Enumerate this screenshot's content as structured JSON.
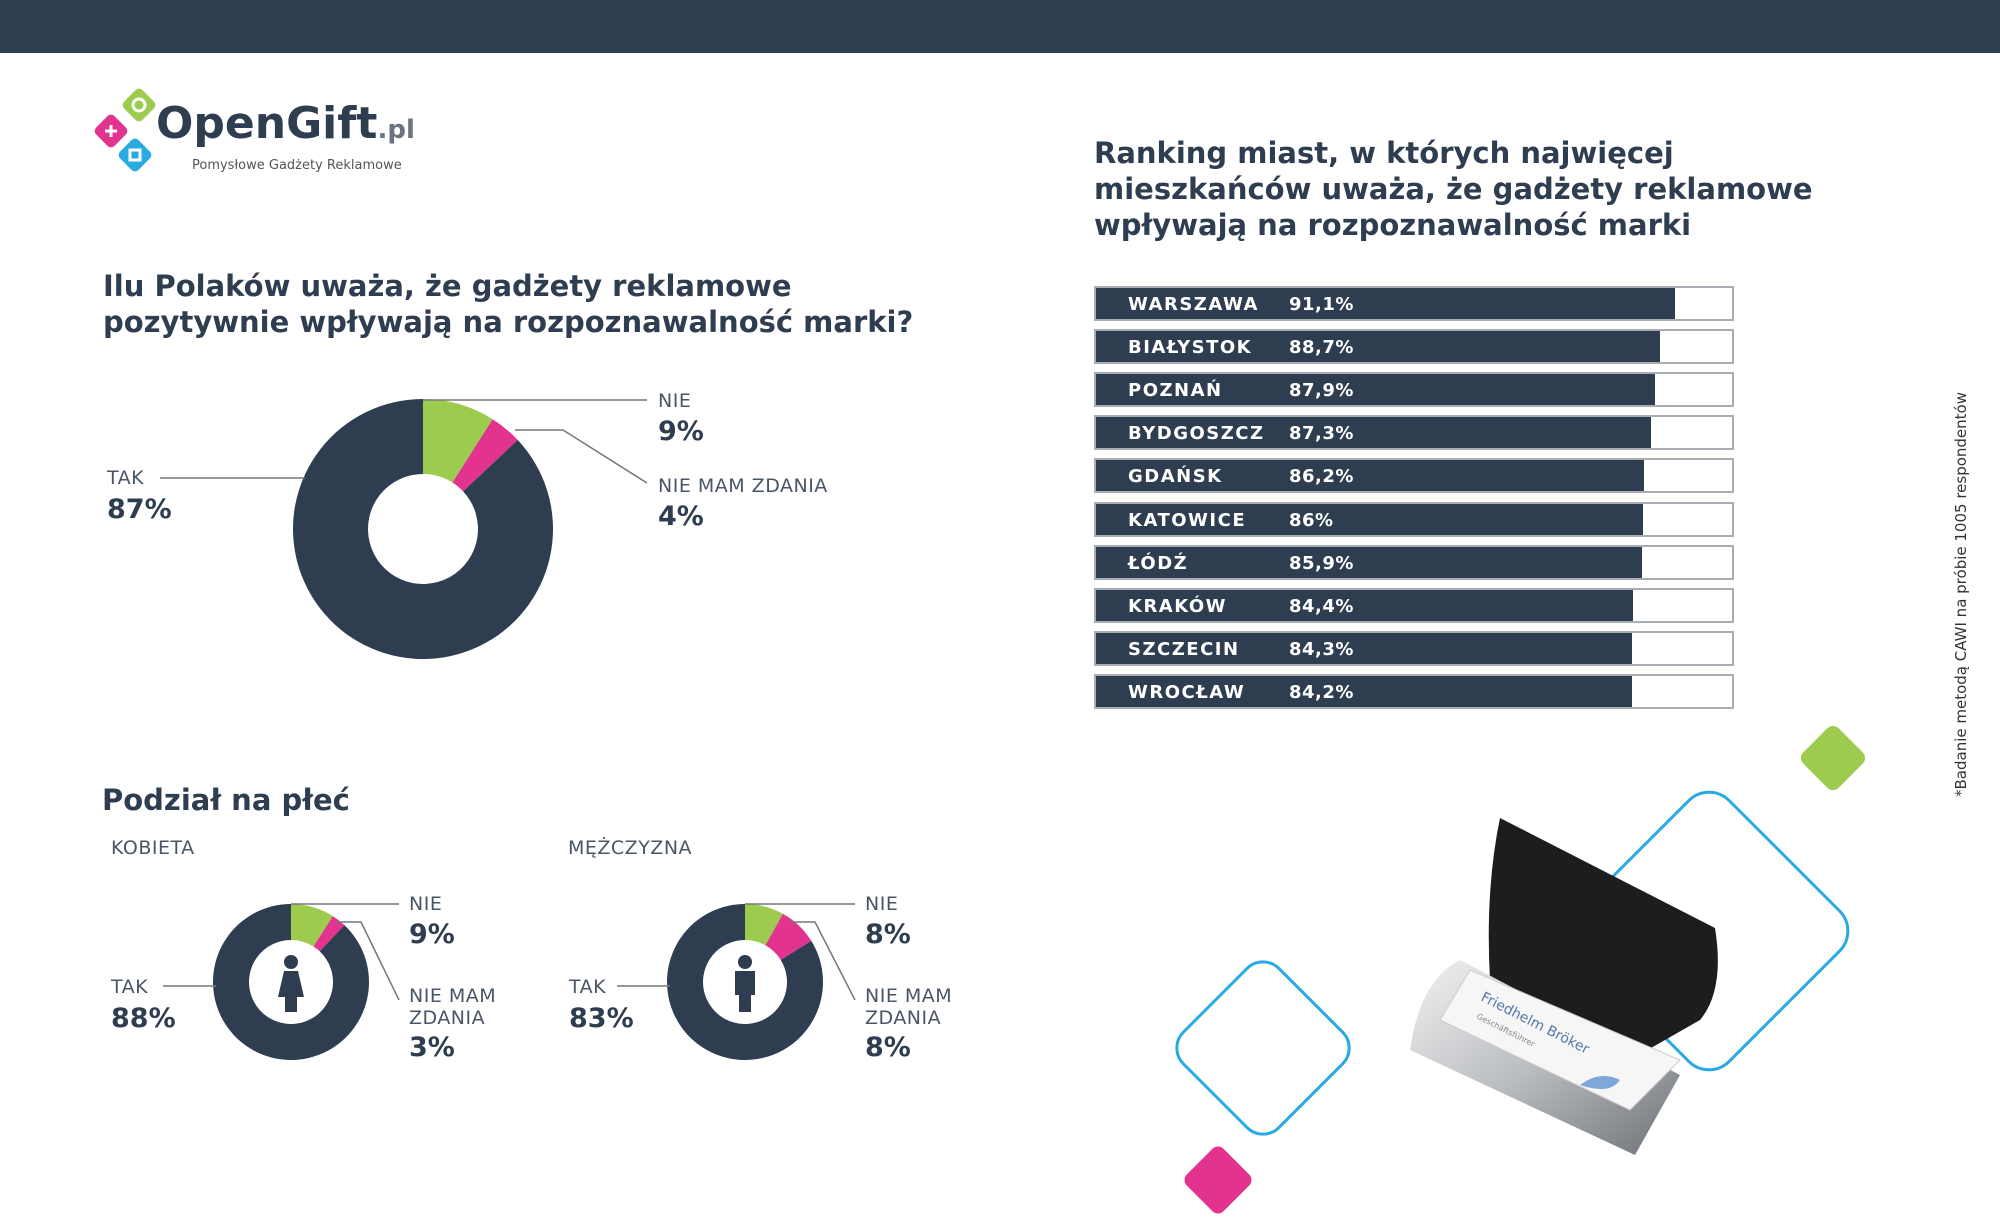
{
  "logo": {
    "name": "OpenGift",
    "suffix": ".pl",
    "tagline": "Pomysłowe Gadżety Reklamowe"
  },
  "colors": {
    "dark": "#2e3d50",
    "green": "#9ccb4f",
    "pink": "#e2338f",
    "blue": "#29abe2"
  },
  "main": {
    "title_line1": "Ilu Polaków uważa, że gadżety reklamowe",
    "title_line2": "pozytywnie wpływają na rozpoznawalność marki?",
    "labels": {
      "tak": "TAK",
      "nie": "NIE",
      "nmz": "NIE MAM ZDANIA"
    },
    "values": {
      "tak": "87%",
      "nie": "9%",
      "nmz": "4%"
    }
  },
  "gender": {
    "title": "Podział na płeć",
    "women": {
      "label": "KOBIETA",
      "tak_label": "TAK",
      "nie_label": "NIE",
      "nmz_label1": "NIE MAM",
      "nmz_label2": "ZDANIA",
      "tak": "88%",
      "nie": "9%",
      "nmz": "3%"
    },
    "men": {
      "label": "MĘŻCZYZNA",
      "tak_label": "TAK",
      "nie_label": "NIE",
      "nmz_label1": "NIE MAM",
      "nmz_label2": "ZDANIA",
      "tak": "83%",
      "nie": "8%",
      "nmz": "8%"
    }
  },
  "chart_data": [
    {
      "type": "pie",
      "title": "Ilu Polaków uważa, że gadżety reklamowe pozytywnie wpływają na rozpoznawalność marki?",
      "categories": [
        "NIE",
        "NIE MAM ZDANIA",
        "TAK"
      ],
      "values": [
        9,
        4,
        87
      ]
    },
    {
      "type": "pie",
      "title": "KOBIETA",
      "categories": [
        "NIE",
        "NIE MAM ZDANIA",
        "TAK"
      ],
      "values": [
        9,
        3,
        88
      ]
    },
    {
      "type": "pie",
      "title": "MĘŻCZYZNA",
      "categories": [
        "NIE",
        "NIE MAM ZDANIA",
        "TAK"
      ],
      "values": [
        8,
        8,
        83
      ]
    },
    {
      "type": "bar",
      "title": "Ranking miast, w których najwięcej mieszkańców uważa, że gadżety reklamowe wpływają na rozpoznawalność marki",
      "categories": [
        "WARSZAWA",
        "BIAŁYSTOK",
        "POZNAŃ",
        "BYDGOSZCZ",
        "GDAŃSK",
        "KATOWICE",
        "ŁÓDŹ",
        "KRAKÓW",
        "SZCZECIN",
        "WROCŁAW"
      ],
      "values": [
        91.1,
        88.7,
        87.9,
        87.3,
        86.2,
        86,
        85.9,
        84.4,
        84.3,
        84.2
      ],
      "labels": [
        "91,1%",
        "88,7%",
        "87,9%",
        "87,3%",
        "86,2%",
        "86%",
        "85,9%",
        "84,4%",
        "84,3%",
        "84,2%"
      ],
      "ylim": [
        0,
        100
      ]
    }
  ],
  "ranking": {
    "title_line1": "Ranking miast, w których najwięcej",
    "title_line2": "mieszkańców uważa, że gadżety reklamowe",
    "title_line3": "wpływają na rozpoznawalność marki"
  },
  "product": {
    "card_name": "Friedhelm Bröker",
    "card_sub": "Geschäftsführer"
  },
  "footnote": "*Badanie metodą CAWI na próbie 1005 respondentów"
}
